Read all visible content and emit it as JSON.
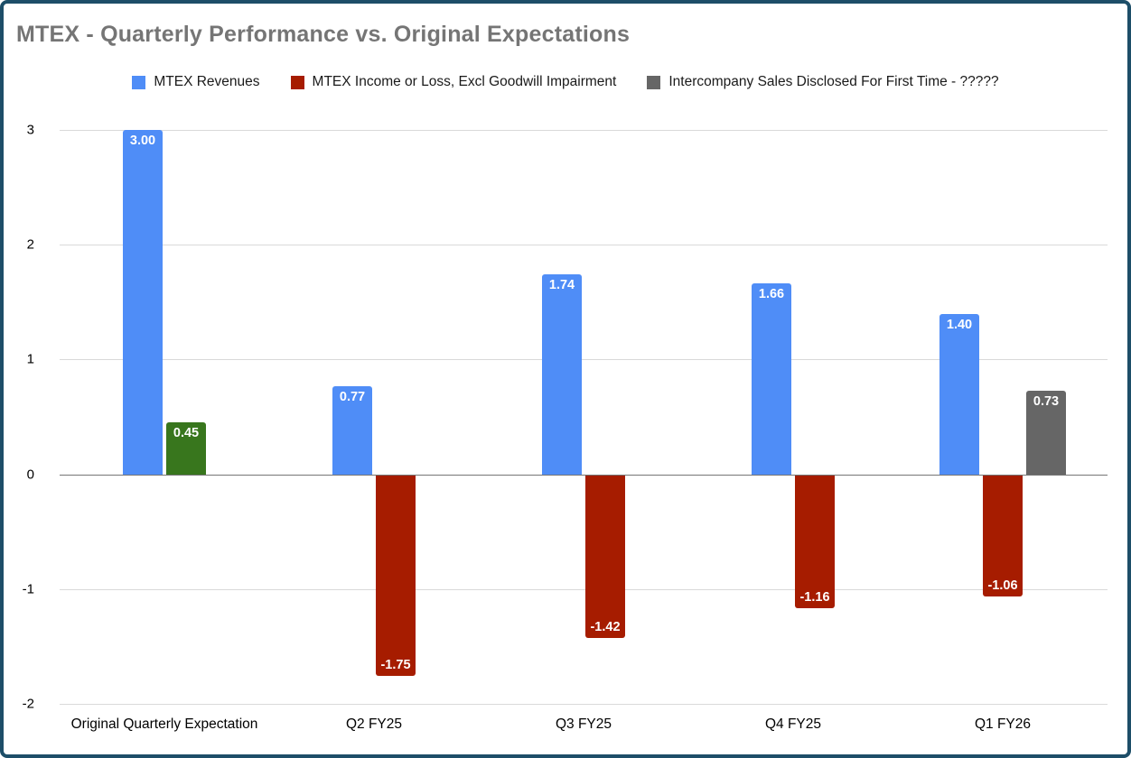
{
  "chart_data": {
    "type": "bar",
    "title": "MTEX - Quarterly Performance vs. Original Expectations",
    "categories": [
      "Original Quarterly Expectation",
      "Q2 FY25",
      "Q3 FY25",
      "Q4 FY25",
      "Q1 FY26"
    ],
    "series": [
      {
        "name": "MTEX Revenues",
        "color": "#4f8df7",
        "values": [
          3.0,
          0.77,
          1.74,
          1.66,
          1.4
        ]
      },
      {
        "name": "MTEX Income or Loss, Excl Goodwill Impairment",
        "color": "#a61c00",
        "values": [
          0.45,
          -1.75,
          -1.42,
          -1.16,
          -1.06
        ],
        "point_colors": {
          "0": "#38761d"
        }
      },
      {
        "name": "Intercompany Sales Disclosed For First Time - ?????",
        "color": "#666666",
        "values": [
          null,
          null,
          null,
          null,
          0.73
        ]
      }
    ],
    "ylim": [
      -2,
      3
    ],
    "yticks": [
      3,
      2,
      1,
      0,
      -1,
      -2
    ],
    "grid": true,
    "legend_position": "top"
  },
  "colors": {
    "frame_border": "#1d4e68",
    "title_text": "#757575",
    "gridline": "#d9d9d9",
    "zero_line": "#757575",
    "bar_value_label_text": "#ffffff"
  }
}
